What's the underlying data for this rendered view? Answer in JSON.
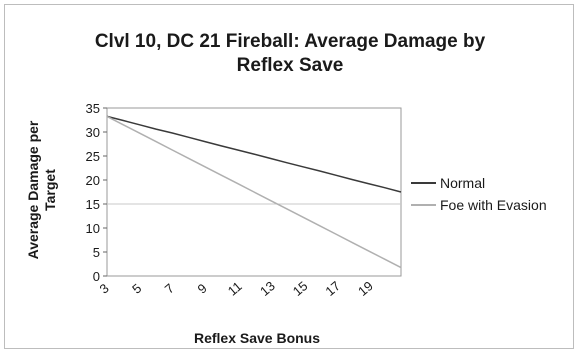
{
  "chart_data": {
    "type": "line",
    "title_lines": [
      "Clvl 10, DC 21 Fireball: Average Damage by",
      "Reflex Save"
    ],
    "xlabel": "Reflex Save Bonus",
    "ylabel_lines": [
      "Average Damage per",
      "Target"
    ],
    "x": [
      3,
      5,
      7,
      9,
      11,
      13,
      15,
      17,
      19
    ],
    "x_tick_labels": [
      "3",
      "5",
      "7",
      "9",
      "11",
      "13",
      "15",
      "17",
      "19"
    ],
    "x_domain": [
      3,
      21
    ],
    "ylim": [
      0,
      35
    ],
    "y_ticks": [
      0,
      5,
      10,
      15,
      20,
      25,
      30,
      35
    ],
    "grid": "horizontal at 15",
    "legend_position": "right",
    "series": [
      {
        "name": "Normal",
        "color": "#3a3a3a",
        "x": [
          3,
          4,
          5,
          6,
          7,
          8,
          9,
          10,
          11,
          12,
          13,
          14,
          15,
          16,
          17,
          18,
          19,
          20,
          21
        ],
        "values": [
          33.25,
          32.4,
          31.5,
          30.6,
          29.8,
          28.9,
          28.0,
          27.1,
          26.25,
          25.4,
          24.5,
          23.6,
          22.75,
          21.9,
          21.0,
          20.1,
          19.25,
          18.4,
          17.5
        ]
      },
      {
        "name": "Foe with Evasion",
        "color": "#b0b0b0",
        "x": [
          3,
          4,
          5,
          6,
          7,
          8,
          9,
          10,
          11,
          12,
          13,
          14,
          15,
          16,
          17,
          18,
          19,
          20,
          21
        ],
        "values": [
          33.25,
          31.5,
          29.75,
          28.0,
          26.25,
          24.5,
          22.75,
          21.0,
          19.25,
          17.5,
          15.75,
          14.0,
          12.25,
          10.5,
          8.75,
          7.0,
          5.25,
          3.5,
          1.75
        ]
      }
    ]
  }
}
